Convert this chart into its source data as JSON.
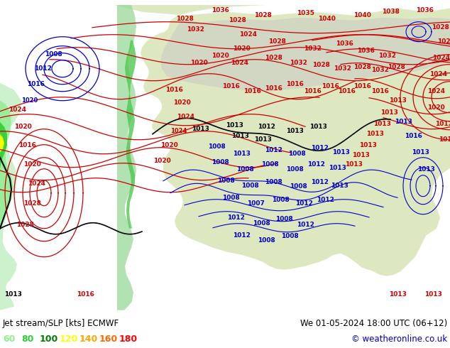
{
  "title_left": "Jet stream/SLP [kts] ECMWF",
  "title_right": "We 01-05-2024 18:00 UTC (06+12)",
  "copyright": "© weatheronline.co.uk",
  "legend_values": [
    "60",
    "80",
    "100",
    "120",
    "140",
    "160",
    "180"
  ],
  "legend_colors": [
    "#90ee90",
    "#32cd32",
    "#008000",
    "#ffff00",
    "#ffa500",
    "#ff6600",
    "#ff0000"
  ],
  "bg_color": "#ffffff",
  "figsize": [
    6.34,
    4.9
  ],
  "dpi": 100,
  "bottom_bar_color": "#f5f5f5",
  "map_light_green": "#d4edba",
  "map_medium_green": "#90ee90",
  "map_dark_green": "#228b22",
  "map_yellow_green": "#c8e06e",
  "map_gray": "#b0b0b0",
  "map_white": "#f8f8f8",
  "isobar_red": "#cc0000",
  "isobar_blue": "#0000cc",
  "isobar_black": "#000000"
}
